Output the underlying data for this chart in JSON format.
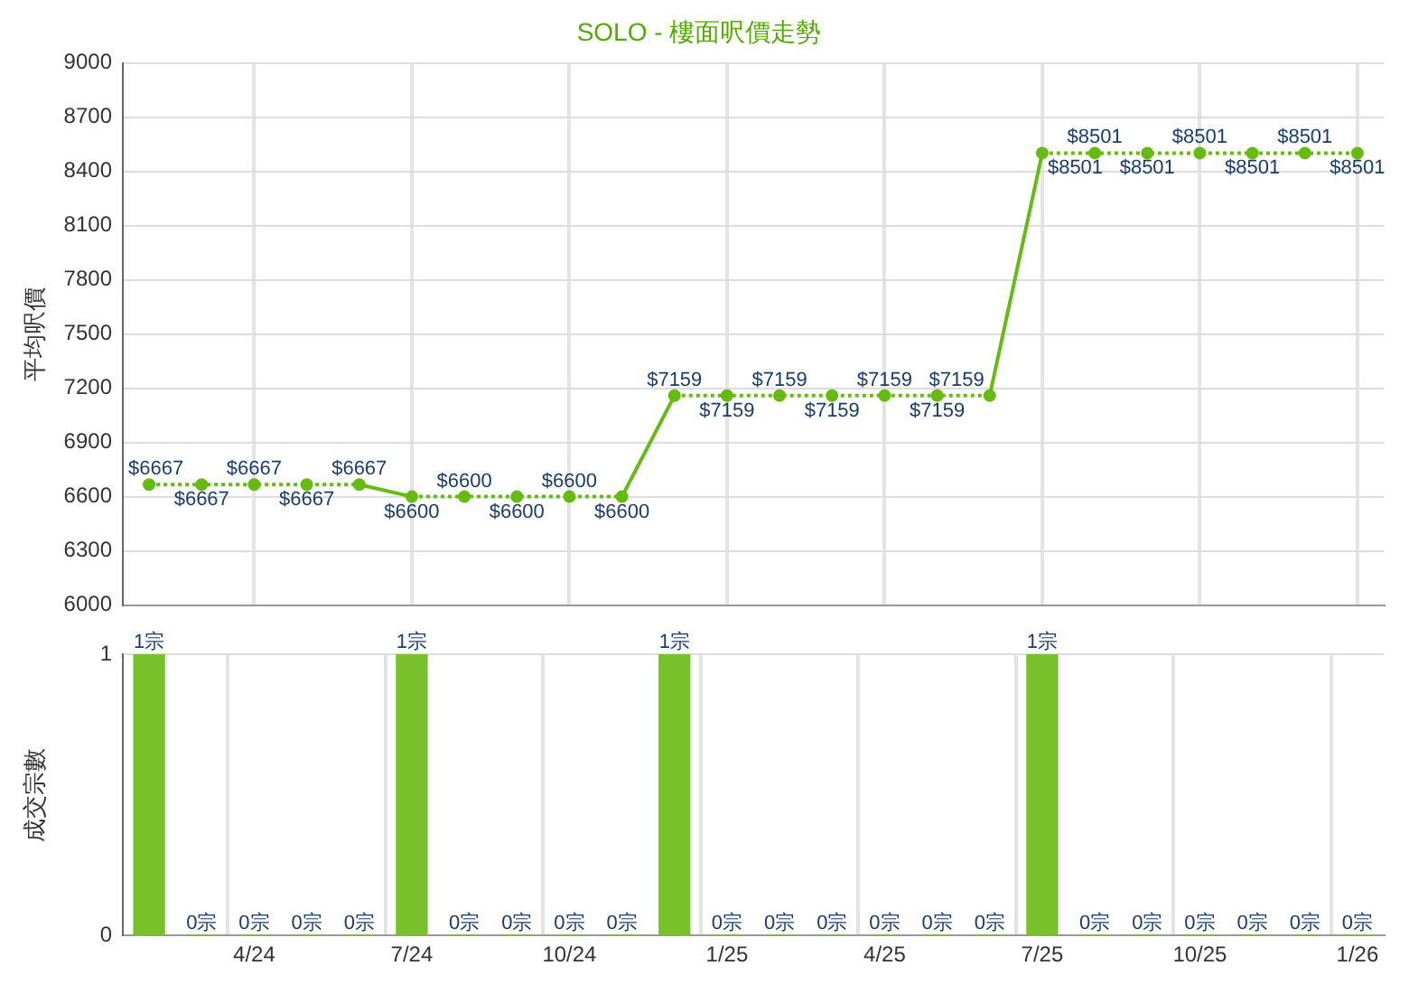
{
  "chart_data": [
    {
      "type": "line",
      "title": "SOLO - 樓面呎價走勢",
      "ylabel": "平均呎價",
      "categories": [
        null,
        null,
        null,
        null,
        null,
        null,
        null,
        null,
        null,
        null,
        null,
        null,
        null,
        null,
        null,
        null,
        null,
        null,
        null,
        null,
        null,
        null,
        null,
        null
      ],
      "series": [
        {
          "color": "#66bb11",
          "values": [
            6667,
            6667,
            6667,
            6667,
            6667,
            6600,
            6600,
            6600,
            6600,
            6600,
            7159,
            7159,
            7159,
            7159,
            7159,
            7159,
            7159,
            8501,
            8501,
            8501,
            8501,
            8501,
            8501,
            8501
          ],
          "value_labels": [
            "$6667",
            "$6667",
            "$6667",
            "$6667",
            "$6667",
            "$6600",
            "$6600",
            "$6600",
            "$6600",
            "$6600",
            "$7159",
            "$7159",
            "$7159",
            "$7159",
            "$7159",
            "$7159",
            "$7159",
            "$8501",
            "$8501",
            "$8501",
            "$8501",
            "$8501",
            "$8501",
            "$8501"
          ]
        }
      ],
      "ylim": [
        6000,
        9000
      ],
      "yticks": [
        6000,
        6300,
        6600,
        6900,
        7200,
        7500,
        7800,
        8100,
        8400,
        8700,
        9000
      ],
      "grid": true,
      "marker": "circle",
      "line_style": "dotted",
      "tick_labels": "y"
    },
    {
      "type": "bar",
      "ylabel": "成交宗數",
      "categories": [
        null,
        null,
        "4/24",
        null,
        null,
        "7/24",
        null,
        null,
        "10/24",
        null,
        null,
        "1/25",
        null,
        null,
        "4/25",
        null,
        null,
        "7/25",
        null,
        null,
        "10/25",
        null,
        null,
        "1/26"
      ],
      "values": [
        1,
        0,
        0,
        0,
        0,
        1,
        0,
        0,
        0,
        0,
        1,
        0,
        0,
        0,
        0,
        0,
        0,
        1,
        0,
        0,
        0,
        0,
        0,
        0
      ],
      "value_labels": [
        "1宗",
        "0宗",
        "0宗",
        "0宗",
        "0宗",
        "1宗",
        "0宗",
        "0宗",
        "0宗",
        "0宗",
        "1宗",
        "0宗",
        "0宗",
        "0宗",
        "0宗",
        "0宗",
        "0宗",
        "1宗",
        "0宗",
        "0宗",
        "0宗",
        "0宗",
        "0宗",
        "0宗"
      ],
      "color": "#77c22a",
      "ylim": [
        0,
        1
      ],
      "yticks": [
        0,
        1
      ],
      "grid": true
    }
  ]
}
